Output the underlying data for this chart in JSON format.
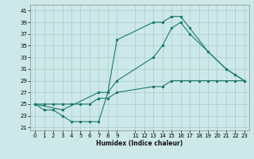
{
  "xlabel": "Humidex (Indice chaleur)",
  "bg_color": "#cde8e8",
  "grid_color": "#aacccc",
  "line_color": "#1a7a6a",
  "xlim": [
    -0.5,
    23.5
  ],
  "ylim": [
    20.5,
    42
  ],
  "yticks": [
    21,
    23,
    25,
    27,
    29,
    31,
    33,
    35,
    37,
    39,
    41
  ],
  "xticks": [
    0,
    1,
    2,
    3,
    4,
    5,
    6,
    7,
    8,
    9,
    11,
    12,
    13,
    14,
    15,
    16,
    17,
    18,
    19,
    20,
    21,
    22,
    23
  ],
  "line1_x": [
    0,
    1,
    2,
    3,
    4,
    5,
    6,
    7,
    8,
    9,
    13,
    14,
    15,
    16,
    17,
    19,
    21,
    22,
    23
  ],
  "line1_y": [
    25,
    24,
    24,
    23,
    22,
    22,
    22,
    22,
    27,
    36,
    39,
    39,
    40,
    40,
    38,
    34,
    31,
    30,
    29
  ],
  "line2_x": [
    0,
    3,
    7,
    8,
    9,
    13,
    14,
    15,
    16,
    17,
    19,
    21,
    22,
    23
  ],
  "line2_y": [
    25,
    24,
    27,
    27,
    29,
    33,
    35,
    38,
    39,
    37,
    34,
    31,
    30,
    29
  ],
  "line3_x": [
    0,
    1,
    2,
    3,
    4,
    5,
    6,
    7,
    8,
    9,
    13,
    14,
    15,
    16,
    17,
    18,
    19,
    20,
    21,
    22,
    23
  ],
  "line3_y": [
    25,
    25,
    25,
    25,
    25,
    25,
    25,
    26,
    26,
    27,
    28,
    28,
    29,
    29,
    29,
    29,
    29,
    29,
    29,
    29,
    29
  ]
}
